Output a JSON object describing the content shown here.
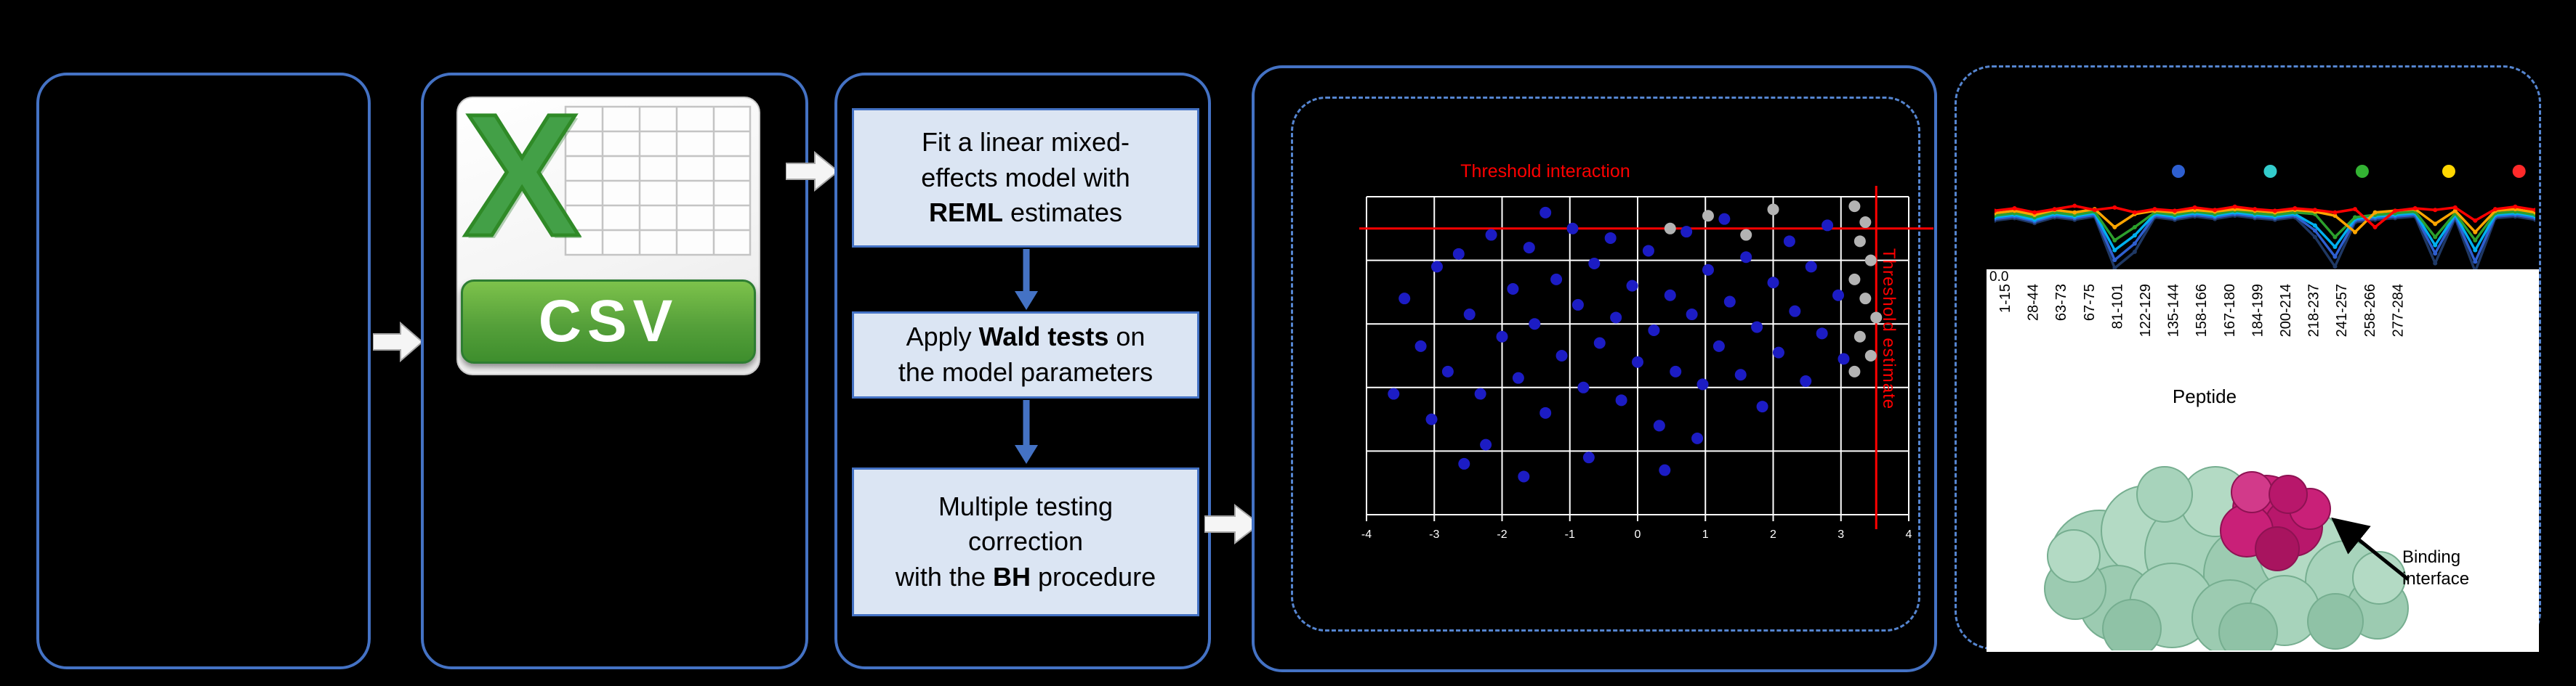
{
  "canvas": {
    "background": "#000000",
    "accent_blue": "#4472C4"
  },
  "csv": {
    "letter": "X",
    "label": "CSV"
  },
  "steps": [
    {
      "pre": "Fit a linear mixed-\neffects model with\n",
      "bold": "REML",
      "post": " estimates"
    },
    {
      "pre": "Apply ",
      "bold": "Wald tests",
      "post": " on\nthe model parameters"
    },
    {
      "pre": "Multiple testing\ncorrection\nwith the ",
      "bold": "BH",
      "post": " procedure"
    }
  ],
  "scatter": {
    "title": "Threshold interaction",
    "side_label": "Threshold estimate",
    "x_ticks": [
      "-4",
      "-3",
      "-2",
      "-1",
      "0",
      "1",
      "2",
      "3",
      "4"
    ],
    "threshold_h": 0.1,
    "threshold_v": 0.94,
    "colors": {
      "blue": "#1C1CC4",
      "gray": "#B3B3B3",
      "threshold": "#FF0000",
      "grid": "#FFFFFF"
    },
    "points_blue": [
      [
        0.05,
        0.62
      ],
      [
        0.07,
        0.32
      ],
      [
        0.1,
        0.47
      ],
      [
        0.12,
        0.7
      ],
      [
        0.13,
        0.22
      ],
      [
        0.15,
        0.55
      ],
      [
        0.17,
        0.18
      ],
      [
        0.19,
        0.37
      ],
      [
        0.21,
        0.62
      ],
      [
        0.22,
        0.78
      ],
      [
        0.23,
        0.12
      ],
      [
        0.25,
        0.44
      ],
      [
        0.27,
        0.29
      ],
      [
        0.28,
        0.57
      ],
      [
        0.3,
        0.16
      ],
      [
        0.31,
        0.4
      ],
      [
        0.33,
        0.05
      ],
      [
        0.33,
        0.68
      ],
      [
        0.35,
        0.26
      ],
      [
        0.36,
        0.5
      ],
      [
        0.38,
        0.1
      ],
      [
        0.39,
        0.34
      ],
      [
        0.4,
        0.6
      ],
      [
        0.42,
        0.21
      ],
      [
        0.43,
        0.46
      ],
      [
        0.45,
        0.13
      ],
      [
        0.46,
        0.38
      ],
      [
        0.47,
        0.64
      ],
      [
        0.49,
        0.28
      ],
      [
        0.5,
        0.52
      ],
      [
        0.52,
        0.17
      ],
      [
        0.53,
        0.42
      ],
      [
        0.54,
        0.72
      ],
      [
        0.56,
        0.31
      ],
      [
        0.57,
        0.55
      ],
      [
        0.59,
        0.11
      ],
      [
        0.6,
        0.37
      ],
      [
        0.62,
        0.59
      ],
      [
        0.63,
        0.23
      ],
      [
        0.65,
        0.47
      ],
      [
        0.66,
        0.07
      ],
      [
        0.67,
        0.33
      ],
      [
        0.69,
        0.56
      ],
      [
        0.7,
        0.19
      ],
      [
        0.72,
        0.41
      ],
      [
        0.73,
        0.66
      ],
      [
        0.75,
        0.27
      ],
      [
        0.76,
        0.49
      ],
      [
        0.78,
        0.14
      ],
      [
        0.79,
        0.36
      ],
      [
        0.81,
        0.58
      ],
      [
        0.82,
        0.22
      ],
      [
        0.84,
        0.43
      ],
      [
        0.85,
        0.09
      ],
      [
        0.87,
        0.31
      ],
      [
        0.88,
        0.51
      ],
      [
        0.41,
        0.82
      ],
      [
        0.55,
        0.86
      ],
      [
        0.29,
        0.88
      ],
      [
        0.61,
        0.76
      ],
      [
        0.18,
        0.84
      ]
    ],
    "points_gray": [
      [
        0.56,
        0.1
      ],
      [
        0.63,
        0.06
      ],
      [
        0.7,
        0.12
      ],
      [
        0.75,
        0.04
      ],
      [
        0.9,
        0.03
      ],
      [
        0.92,
        0.08
      ],
      [
        0.91,
        0.14
      ],
      [
        0.93,
        0.2
      ],
      [
        0.9,
        0.26
      ],
      [
        0.92,
        0.32
      ],
      [
        0.94,
        0.38
      ],
      [
        0.91,
        0.44
      ],
      [
        0.93,
        0.5
      ],
      [
        0.9,
        0.55
      ]
    ]
  },
  "profile": {
    "dots_x": [
      0.34,
      0.51,
      0.68,
      0.84,
      0.97
    ],
    "dot_colors": [
      "#2E5FD0",
      "#33CCCC",
      "#33B333",
      "#FFD700",
      "#FF2A2A"
    ],
    "series": [
      {
        "name": "navy",
        "color": "#1F3864",
        "values": [
          0.7,
          0.73,
          0.67,
          0.74,
          0.71,
          0.75,
          0.12,
          0.32,
          0.74,
          0.71,
          0.75,
          0.72,
          0.76,
          0.73,
          0.71,
          0.74,
          0.5,
          0.14,
          0.68,
          0.71,
          0.73,
          0.75,
          0.18,
          0.73,
          0.08,
          0.73,
          0.75,
          0.71
        ]
      },
      {
        "name": "blue",
        "color": "#2E5FD0",
        "values": [
          0.72,
          0.75,
          0.69,
          0.76,
          0.73,
          0.77,
          0.22,
          0.42,
          0.76,
          0.73,
          0.77,
          0.74,
          0.78,
          0.75,
          0.73,
          0.76,
          0.58,
          0.26,
          0.7,
          0.73,
          0.75,
          0.77,
          0.3,
          0.75,
          0.2,
          0.75,
          0.77,
          0.73
        ]
      },
      {
        "name": "cyan",
        "color": "#00B0F0",
        "values": [
          0.74,
          0.77,
          0.71,
          0.78,
          0.75,
          0.79,
          0.34,
          0.52,
          0.78,
          0.75,
          0.79,
          0.76,
          0.8,
          0.77,
          0.75,
          0.78,
          0.64,
          0.38,
          0.72,
          0.75,
          0.77,
          0.79,
          0.4,
          0.77,
          0.34,
          0.77,
          0.79,
          0.75
        ]
      },
      {
        "name": "green",
        "color": "#2CA02C",
        "values": [
          0.76,
          0.79,
          0.74,
          0.8,
          0.77,
          0.81,
          0.46,
          0.62,
          0.8,
          0.77,
          0.81,
          0.78,
          0.82,
          0.79,
          0.77,
          0.8,
          0.78,
          0.5,
          0.74,
          0.77,
          0.79,
          0.81,
          0.5,
          0.79,
          0.46,
          0.79,
          0.81,
          0.77
        ]
      },
      {
        "name": "orange",
        "color": "#FFA500",
        "values": [
          0.79,
          0.82,
          0.77,
          0.83,
          0.8,
          0.84,
          0.62,
          0.78,
          0.82,
          0.8,
          0.83,
          0.81,
          0.84,
          0.82,
          0.8,
          0.83,
          0.81,
          0.76,
          0.56,
          0.8,
          0.82,
          0.84,
          0.66,
          0.82,
          0.56,
          0.82,
          0.84,
          0.8
        ]
      },
      {
        "name": "red",
        "color": "#FF0000",
        "values": [
          0.82,
          0.85,
          0.8,
          0.84,
          0.88,
          0.83,
          0.86,
          0.8,
          0.84,
          0.82,
          0.86,
          0.83,
          0.87,
          0.84,
          0.82,
          0.85,
          0.83,
          0.8,
          0.84,
          0.62,
          0.82,
          0.85,
          0.83,
          0.86,
          0.7,
          0.84,
          0.87,
          0.83
        ]
      }
    ]
  },
  "peptide": {
    "y_tick": "0.0",
    "labels": [
      "1-15",
      "28-44",
      "63-73",
      "67-75",
      "81-101",
      "122-129",
      "135-144",
      "158-166",
      "167-180",
      "184-199",
      "200-214",
      "218-237",
      "241-257",
      "258-266",
      "277-284"
    ],
    "axis_label": "Peptide"
  },
  "protein": {
    "annotation": "Binding interface"
  }
}
